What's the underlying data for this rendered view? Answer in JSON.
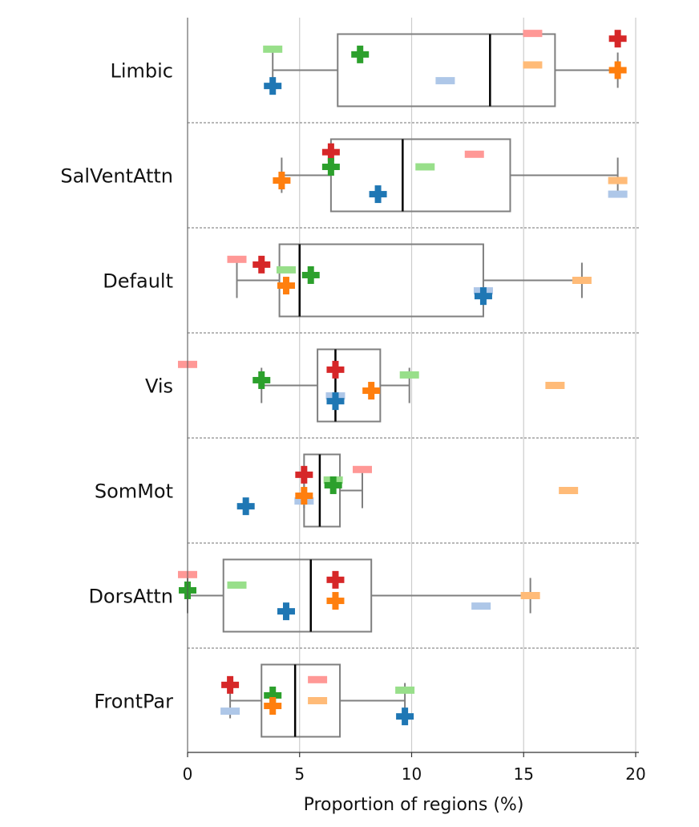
{
  "chart_data": {
    "type": "box",
    "title": "",
    "xlabel": "Proportion of regions (%)",
    "ylabel": "",
    "xlim": [
      0,
      20
    ],
    "xticks": [
      0,
      5,
      10,
      15,
      20
    ],
    "grid": "vertical",
    "colors": {
      "red": "#d62728",
      "green": "#2ca02c",
      "blue": "#1f77b4",
      "orange": "#ff7f0e",
      "light_red": "#ff9896",
      "light_green": "#98df8a",
      "light_blue": "#aec7e8",
      "light_orange": "#ffbb78",
      "box": "#7f7f7f",
      "median": "#000000"
    },
    "categories": [
      {
        "name": "Limbic",
        "box": {
          "whisker_low": 3.8,
          "q1": 6.7,
          "median": 13.5,
          "q3": 16.4,
          "whisker_high": 19.2
        },
        "points": [
          {
            "marker": "plus",
            "color": "red",
            "x": 19.2,
            "row": 0.2
          },
          {
            "marker": "plus",
            "color": "green",
            "x": 7.7,
            "row": 0.35
          },
          {
            "marker": "plus",
            "color": "orange",
            "x": 19.2,
            "row": 0.5
          },
          {
            "marker": "plus",
            "color": "blue",
            "x": 3.8,
            "row": 0.65
          },
          {
            "marker": "dash",
            "color": "light_red",
            "x": 15.4,
            "row": 0.15
          },
          {
            "marker": "dash",
            "color": "light_green",
            "x": 3.8,
            "row": 0.3
          },
          {
            "marker": "dash",
            "color": "light_orange",
            "x": 15.4,
            "row": 0.45
          },
          {
            "marker": "dash",
            "color": "light_blue",
            "x": 11.5,
            "row": 0.6
          }
        ]
      },
      {
        "name": "SalVentAttn",
        "box": {
          "whisker_low": 4.2,
          "q1": 6.4,
          "median": 9.6,
          "q3": 14.4,
          "whisker_high": 19.2
        },
        "points": [
          {
            "marker": "plus",
            "color": "red",
            "x": 6.4,
            "row": 0.28
          },
          {
            "marker": "plus",
            "color": "green",
            "x": 6.4,
            "row": 0.42
          },
          {
            "marker": "plus",
            "color": "orange",
            "x": 4.2,
            "row": 0.55
          },
          {
            "marker": "plus",
            "color": "blue",
            "x": 8.5,
            "row": 0.68
          },
          {
            "marker": "dash",
            "color": "light_red",
            "x": 12.8,
            "row": 0.3
          },
          {
            "marker": "dash",
            "color": "light_green",
            "x": 10.6,
            "row": 0.42
          },
          {
            "marker": "dash",
            "color": "light_orange",
            "x": 19.2,
            "row": 0.55
          },
          {
            "marker": "dash",
            "color": "light_blue",
            "x": 19.2,
            "row": 0.68
          }
        ]
      },
      {
        "name": "Default",
        "box": {
          "whisker_low": 2.2,
          "q1": 4.1,
          "median": 5.0,
          "q3": 13.2,
          "whisker_high": 17.6
        },
        "points": [
          {
            "marker": "plus",
            "color": "red",
            "x": 3.3,
            "row": 0.35
          },
          {
            "marker": "plus",
            "color": "green",
            "x": 5.5,
            "row": 0.45
          },
          {
            "marker": "plus",
            "color": "orange",
            "x": 4.4,
            "row": 0.55
          },
          {
            "marker": "plus",
            "color": "blue",
            "x": 13.2,
            "row": 0.65
          },
          {
            "marker": "dash",
            "color": "light_red",
            "x": 2.2,
            "row": 0.3
          },
          {
            "marker": "dash",
            "color": "light_green",
            "x": 4.4,
            "row": 0.4
          },
          {
            "marker": "dash",
            "color": "light_orange",
            "x": 17.6,
            "row": 0.5
          },
          {
            "marker": "dash",
            "color": "light_blue",
            "x": 13.2,
            "row": 0.6
          }
        ]
      },
      {
        "name": "Vis",
        "box": {
          "whisker_low": 3.3,
          "q1": 5.8,
          "median": 6.6,
          "q3": 8.6,
          "whisker_high": 9.9
        },
        "points": [
          {
            "marker": "plus",
            "color": "red",
            "x": 6.6,
            "row": 0.35
          },
          {
            "marker": "plus",
            "color": "green",
            "x": 3.3,
            "row": 0.45
          },
          {
            "marker": "plus",
            "color": "orange",
            "x": 8.2,
            "row": 0.55
          },
          {
            "marker": "plus",
            "color": "blue",
            "x": 6.6,
            "row": 0.65
          },
          {
            "marker": "dash",
            "color": "light_red",
            "x": 0,
            "row": 0.3
          },
          {
            "marker": "dash",
            "color": "light_green",
            "x": 9.9,
            "row": 0.4
          },
          {
            "marker": "dash",
            "color": "light_orange",
            "x": 16.4,
            "row": 0.5
          },
          {
            "marker": "dash",
            "color": "light_blue",
            "x": 6.6,
            "row": 0.6
          }
        ]
      },
      {
        "name": "SomMot",
        "box": {
          "whisker_low": 5.2,
          "q1": 5.2,
          "median": 5.9,
          "q3": 6.8,
          "whisker_high": 7.8
        },
        "points": [
          {
            "marker": "plus",
            "color": "red",
            "x": 5.2,
            "row": 0.35
          },
          {
            "marker": "plus",
            "color": "green",
            "x": 6.5,
            "row": 0.45
          },
          {
            "marker": "plus",
            "color": "orange",
            "x": 5.2,
            "row": 0.55
          },
          {
            "marker": "plus",
            "color": "blue",
            "x": 2.6,
            "row": 0.65
          },
          {
            "marker": "dash",
            "color": "light_red",
            "x": 7.8,
            "row": 0.3
          },
          {
            "marker": "dash",
            "color": "light_green",
            "x": 6.5,
            "row": 0.4
          },
          {
            "marker": "dash",
            "color": "light_orange",
            "x": 17.0,
            "row": 0.5
          },
          {
            "marker": "dash",
            "color": "light_blue",
            "x": 5.2,
            "row": 0.6
          }
        ]
      },
      {
        "name": "DorsAttn",
        "box": {
          "whisker_low": 0,
          "q1": 1.6,
          "median": 5.5,
          "q3": 8.2,
          "whisker_high": 15.3
        },
        "points": [
          {
            "marker": "plus",
            "color": "red",
            "x": 6.6,
            "row": 0.35
          },
          {
            "marker": "plus",
            "color": "green",
            "x": 0,
            "row": 0.45
          },
          {
            "marker": "plus",
            "color": "orange",
            "x": 6.6,
            "row": 0.55
          },
          {
            "marker": "plus",
            "color": "blue",
            "x": 4.4,
            "row": 0.65
          },
          {
            "marker": "dash",
            "color": "light_red",
            "x": 0,
            "row": 0.3
          },
          {
            "marker": "dash",
            "color": "light_green",
            "x": 2.2,
            "row": 0.4
          },
          {
            "marker": "dash",
            "color": "light_orange",
            "x": 15.3,
            "row": 0.5
          },
          {
            "marker": "dash",
            "color": "light_blue",
            "x": 13.1,
            "row": 0.6
          }
        ]
      },
      {
        "name": "FrontPar",
        "box": {
          "whisker_low": 1.9,
          "q1": 3.3,
          "median": 4.8,
          "q3": 6.8,
          "whisker_high": 9.7
        },
        "points": [
          {
            "marker": "plus",
            "color": "red",
            "x": 1.9,
            "row": 0.35
          },
          {
            "marker": "plus",
            "color": "green",
            "x": 3.8,
            "row": 0.45
          },
          {
            "marker": "plus",
            "color": "orange",
            "x": 3.8,
            "row": 0.55
          },
          {
            "marker": "plus",
            "color": "blue",
            "x": 9.7,
            "row": 0.65
          },
          {
            "marker": "dash",
            "color": "light_red",
            "x": 5.8,
            "row": 0.3
          },
          {
            "marker": "dash",
            "color": "light_green",
            "x": 9.7,
            "row": 0.4
          },
          {
            "marker": "dash",
            "color": "light_orange",
            "x": 5.8,
            "row": 0.5
          },
          {
            "marker": "dash",
            "color": "light_blue",
            "x": 1.9,
            "row": 0.6
          }
        ]
      }
    ]
  }
}
